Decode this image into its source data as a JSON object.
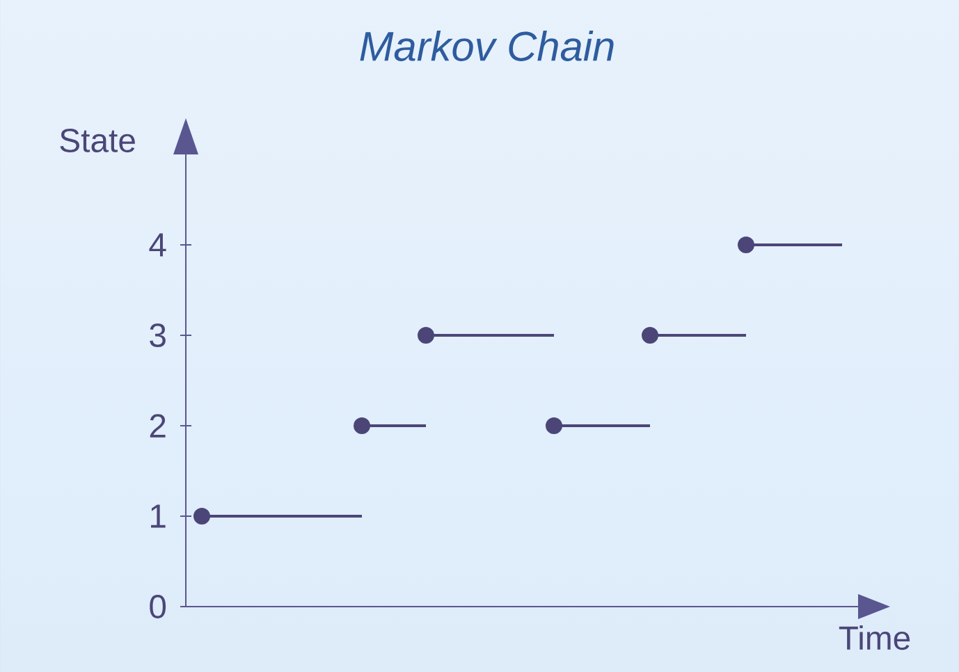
{
  "chart_data": {
    "type": "line",
    "title": "Markov Chain",
    "xlabel": "Time",
    "ylabel": "State",
    "categories": [
      null,
      null,
      null,
      null,
      null,
      null,
      null,
      null,
      null,
      null,
      null,
      null,
      null,
      null,
      null,
      null,
      null,
      null,
      null,
      null,
      null
    ],
    "series": [
      {
        "color": "#4b4677",
        "marker": "none",
        "values": [
          1,
          1,
          1,
          1,
          1,
          1,
          null,
          null,
          null,
          null,
          null,
          null,
          null,
          null,
          null,
          null,
          null,
          null,
          null,
          null,
          null
        ]
      },
      {
        "color": "#4b4677",
        "marker": "none",
        "values": [
          null,
          null,
          null,
          null,
          null,
          2,
          2,
          2,
          null,
          null,
          null,
          null,
          null,
          null,
          null,
          null,
          null,
          null,
          null,
          null,
          null
        ]
      },
      {
        "color": "#4b4677",
        "marker": "none",
        "values": [
          null,
          null,
          null,
          null,
          null,
          null,
          null,
          3,
          3,
          3,
          3,
          3,
          null,
          null,
          null,
          null,
          null,
          null,
          null,
          null,
          null
        ]
      },
      {
        "color": "#4b4677",
        "marker": "none",
        "values": [
          null,
          null,
          null,
          null,
          null,
          null,
          null,
          null,
          null,
          null,
          null,
          2,
          2,
          2,
          2,
          null,
          null,
          null,
          null,
          null,
          null
        ]
      },
      {
        "color": "#4b4677",
        "marker": "none",
        "values": [
          null,
          null,
          null,
          null,
          null,
          null,
          null,
          null,
          null,
          null,
          null,
          null,
          null,
          null,
          3,
          3,
          3,
          3,
          null,
          null,
          null
        ]
      },
      {
        "color": "#4b4677",
        "marker": "none",
        "values": [
          null,
          null,
          null,
          null,
          null,
          null,
          null,
          null,
          null,
          null,
          null,
          null,
          null,
          null,
          null,
          null,
          null,
          4,
          4,
          4,
          4
        ]
      },
      {
        "type": "scatter",
        "color": "#4b4677",
        "marker": "circle",
        "values": [
          1,
          null,
          null,
          null,
          null,
          2,
          null,
          3,
          null,
          null,
          null,
          2,
          null,
          null,
          3,
          null,
          null,
          4,
          null,
          null,
          null
        ]
      }
    ],
    "ylim": [
      0,
      5
    ],
    "yticks": [
      0,
      1,
      2,
      3,
      4
    ],
    "tick_labels": "y",
    "grid": false
  }
}
